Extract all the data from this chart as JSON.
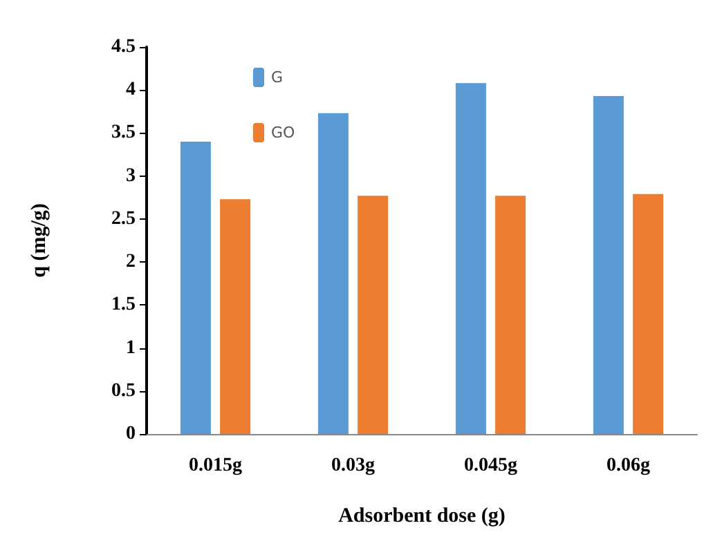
{
  "chart_data": {
    "type": "bar",
    "xlabel": "Adsorbent dose (g)",
    "ylabel": "q (mg/g)",
    "categories": [
      "0.015g",
      "0.03g",
      "0.045g",
      "0.06g"
    ],
    "series": [
      {
        "name": "G",
        "color": "#5b9bd5",
        "values": [
          3.4,
          3.73,
          4.08,
          3.93
        ]
      },
      {
        "name": "GO",
        "color": "#ed7d31",
        "values": [
          2.73,
          2.77,
          2.77,
          2.79
        ]
      }
    ],
    "ylim": [
      0,
      4.5
    ],
    "yticks": [
      0,
      0.5,
      1,
      1.5,
      2,
      2.5,
      3,
      3.5,
      4,
      4.5
    ],
    "grid": false,
    "legend": "top left"
  }
}
